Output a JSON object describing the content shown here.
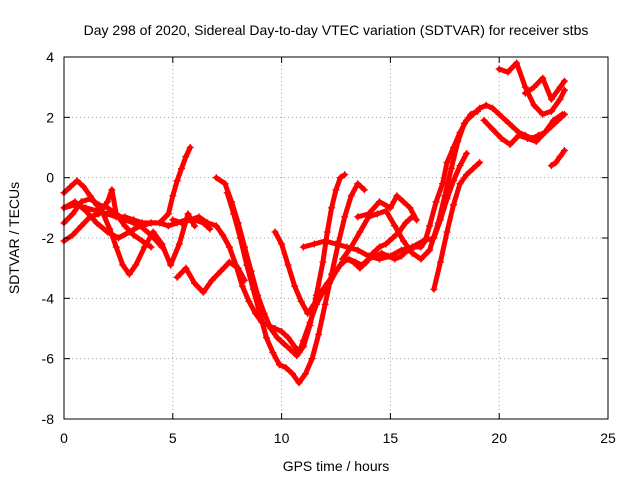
{
  "chart_data": {
    "type": "scatter",
    "title": "Day 298 of 2020, Sidereal Day-to-day VTEC variation (SDTVAR) for receiver stbs",
    "xlabel": "GPS time / hours",
    "ylabel": "SDTVAR / TECUs",
    "xlim": [
      0,
      25
    ],
    "ylim": [
      -8,
      4
    ],
    "xticks": [
      0,
      5,
      10,
      15,
      20,
      25
    ],
    "yticks": [
      -8,
      -6,
      -4,
      -2,
      0,
      2,
      4
    ],
    "xtick_labels": [
      "0",
      "5",
      "10",
      "15",
      "20",
      "25"
    ],
    "ytick_labels": [
      "-8",
      "-6",
      "-4",
      "-2",
      "0",
      "2",
      "4"
    ],
    "grid": true,
    "legend": "none",
    "marker": "+",
    "color": "#ff0000",
    "series": [
      {
        "x": [
          0.0,
          0.3,
          0.6,
          0.9,
          1.2,
          1.5,
          1.8,
          2.1,
          2.4,
          2.7,
          3.0,
          3.3,
          3.7,
          4.1,
          4.5,
          4.9,
          5.3,
          5.7,
          6.0
        ],
        "y": [
          -0.5,
          -0.3,
          -0.1,
          -0.3,
          -0.6,
          -0.9,
          -1.2,
          -1.7,
          -2.3,
          -2.9,
          -3.2,
          -2.9,
          -2.3,
          -1.8,
          -2.2,
          -2.9,
          -2.2,
          -1.2,
          -1.6
        ]
      },
      {
        "x": [
          0.0,
          0.4,
          0.8,
          1.2,
          1.6,
          2.0,
          2.4,
          2.8,
          3.2,
          3.6,
          4.0,
          4.4,
          4.8,
          5.0,
          5.2,
          5.4,
          5.6,
          5.8
        ],
        "y": [
          -1.5,
          -1.2,
          -0.8,
          -0.7,
          -0.9,
          -1.0,
          -1.2,
          -1.4,
          -1.5,
          -1.6,
          -1.5,
          -1.5,
          -1.2,
          -0.6,
          -0.1,
          0.3,
          0.7,
          1.0
        ]
      },
      {
        "x": [
          0.0,
          0.5,
          1.0,
          1.5,
          2.0,
          2.4,
          2.8,
          3.2,
          3.6,
          4.0,
          4.4,
          4.8,
          5.2,
          5.6,
          6.0,
          6.4,
          6.7
        ],
        "y": [
          -1.0,
          -0.9,
          -1.0,
          -1.1,
          -1.2,
          -1.3,
          -1.3,
          -1.4,
          -1.5,
          -1.5,
          -1.5,
          -1.6,
          -1.5,
          -1.4,
          -1.4,
          -1.5,
          -1.7
        ]
      },
      {
        "x": [
          0.0,
          0.4,
          0.8,
          1.2,
          1.6,
          2.0,
          2.2,
          2.4,
          2.8,
          3.2,
          3.6,
          4.0
        ],
        "y": [
          -2.1,
          -1.9,
          -1.6,
          -1.3,
          -1.2,
          -0.8,
          -0.4,
          -1.2,
          -1.6,
          -1.9,
          -2.1,
          -2.3
        ]
      },
      {
        "x": [
          0.0,
          0.5,
          1.0,
          1.5,
          2.0,
          2.5,
          3.0,
          3.5,
          4.0,
          4.5
        ],
        "y": [
          -1.0,
          -0.8,
          -1.1,
          -1.5,
          -1.8,
          -2.0,
          -1.8,
          -1.6,
          -1.9,
          -2.3
        ]
      },
      {
        "x": [
          5.0,
          5.4,
          5.8,
          6.2,
          6.6,
          7.0,
          7.3,
          7.6,
          7.9,
          8.2,
          8.5,
          8.8,
          9.1,
          9.4,
          9.7,
          10.0,
          10.3,
          10.6,
          10.8,
          11.0,
          11.3,
          11.6,
          11.9,
          12.2,
          12.5,
          12.8,
          13.1,
          13.4,
          13.7,
          14.0,
          14.3,
          14.6,
          14.9,
          15.2,
          15.5,
          15.8,
          16.1,
          16.4,
          16.6,
          16.8,
          17.1,
          17.4,
          17.6,
          17.9,
          18.2,
          18.5,
          18.8,
          19.1,
          19.4,
          19.7,
          20.0,
          20.3,
          20.6,
          20.9,
          21.2,
          21.5,
          21.8,
          22.1,
          22.4,
          22.7,
          23.0
        ],
        "y": [
          -1.4,
          -1.5,
          -1.4,
          -1.3,
          -1.5,
          -1.6,
          -1.9,
          -2.3,
          -2.9,
          -3.6,
          -4.1,
          -4.5,
          -4.8,
          -4.9,
          -5.0,
          -5.1,
          -5.3,
          -5.6,
          -5.8,
          -5.4,
          -4.8,
          -4.2,
          -3.8,
          -3.5,
          -3.1,
          -2.8,
          -2.7,
          -2.8,
          -2.9,
          -2.7,
          -2.6,
          -2.5,
          -2.6,
          -2.7,
          -2.6,
          -2.4,
          -2.3,
          -2.3,
          -2.1,
          -1.6,
          -0.8,
          -0.2,
          0.5,
          1.0,
          1.5,
          1.9,
          2.1,
          2.3,
          2.4,
          2.3,
          2.1,
          1.9,
          1.7,
          1.5,
          1.4,
          1.3,
          1.4,
          1.5,
          1.7,
          1.9,
          2.1
        ]
      },
      {
        "x": [
          5.2,
          5.6,
          6.0,
          6.4,
          6.8,
          7.2,
          7.6,
          8.0,
          8.3
        ],
        "y": [
          -3.3,
          -3.0,
          -3.5,
          -3.8,
          -3.4,
          -3.1,
          -2.8,
          -3.0,
          -3.4
        ]
      },
      {
        "x": [
          7.0,
          7.4,
          7.7,
          8.0,
          8.3,
          8.6,
          8.9,
          9.2,
          9.5,
          9.8,
          10.1,
          10.4,
          10.7,
          11.0,
          11.3,
          11.6,
          11.9,
          12.1,
          12.3,
          12.5,
          12.7,
          12.9
        ],
        "y": [
          0.0,
          -0.2,
          -0.8,
          -1.5,
          -2.3,
          -3.1,
          -3.9,
          -4.5,
          -5.0,
          -5.3,
          -5.5,
          -5.7,
          -5.9,
          -5.6,
          -4.9,
          -3.9,
          -2.8,
          -1.8,
          -1.0,
          -0.4,
          0.0,
          0.1
        ]
      },
      {
        "x": [
          7.5,
          7.8,
          8.1,
          8.4,
          8.7,
          9.0,
          9.3,
          9.6,
          9.9,
          10.2,
          10.5,
          10.8,
          11.1,
          11.4,
          11.7,
          12.0,
          12.3,
          12.6,
          12.9,
          13.2,
          13.5,
          13.8
        ],
        "y": [
          -0.5,
          -1.2,
          -2.0,
          -2.9,
          -3.7,
          -4.5,
          -5.3,
          -5.8,
          -6.2,
          -6.3,
          -6.5,
          -6.8,
          -6.5,
          -6.0,
          -5.2,
          -4.2,
          -3.2,
          -2.2,
          -1.3,
          -0.6,
          -0.2,
          -0.4
        ]
      },
      {
        "x": [
          9.7,
          10.0,
          10.3,
          10.6,
          10.9,
          11.2,
          11.5,
          11.8,
          12.1,
          12.4,
          12.7,
          13.0,
          13.3,
          13.6,
          13.9,
          14.2,
          14.5,
          14.8,
          15.1,
          15.4,
          15.7,
          16.0
        ],
        "y": [
          -1.8,
          -2.2,
          -2.9,
          -3.6,
          -4.1,
          -4.5,
          -4.2,
          -3.8,
          -3.5,
          -3.2,
          -2.9,
          -2.7,
          -2.8,
          -3.0,
          -2.8,
          -2.5,
          -2.3,
          -2.2,
          -2.0,
          -1.8,
          -1.5,
          -1.3
        ]
      },
      {
        "x": [
          11.0,
          11.5,
          12.0,
          12.5,
          13.0,
          13.5,
          14.0,
          14.5,
          15.0,
          15.5,
          16.0,
          16.5,
          17.0,
          17.3,
          17.6,
          17.9,
          18.2,
          18.5
        ],
        "y": [
          -2.3,
          -2.2,
          -2.1,
          -2.2,
          -2.3,
          -2.4,
          -2.6,
          -2.7,
          -2.6,
          -2.4,
          -2.3,
          -2.1,
          -2.0,
          -1.4,
          -0.7,
          -0.1,
          0.4,
          0.8
        ]
      },
      {
        "x": [
          12.8,
          13.2,
          13.6,
          14.0,
          14.4,
          14.8,
          15.2,
          15.6,
          16.0,
          16.4,
          16.8,
          17.2,
          17.5,
          17.8,
          18.1,
          18.4,
          18.7,
          19.0
        ],
        "y": [
          -2.7,
          -2.3,
          -1.8,
          -1.3,
          -1.2,
          -1.1,
          -1.6,
          -2.1,
          -2.5,
          -2.7,
          -2.4,
          -1.5,
          -0.6,
          0.3,
          1.2,
          1.8,
          2.1,
          2.2
        ]
      },
      {
        "x": [
          13.5,
          14.0,
          14.5,
          15.0,
          15.3,
          15.6,
          15.9,
          16.2
        ],
        "y": [
          -1.3,
          -1.2,
          -0.8,
          -1.0,
          -0.6,
          -0.8,
          -1.0,
          -1.4
        ]
      },
      {
        "x": [
          17.0,
          17.3,
          17.6,
          17.9,
          18.2,
          18.5,
          18.8,
          19.1
        ],
        "y": [
          -3.7,
          -2.8,
          -1.8,
          -0.9,
          -0.2,
          0.1,
          0.3,
          0.5
        ]
      },
      {
        "x": [
          19.3,
          19.7,
          20.1,
          20.5,
          20.9,
          21.3,
          21.7,
          22.1,
          22.5,
          22.9
        ],
        "y": [
          1.9,
          1.6,
          1.3,
          1.1,
          1.4,
          1.3,
          1.2,
          1.5,
          1.9,
          2.1
        ]
      },
      {
        "x": [
          20.0,
          20.4,
          20.8,
          21.2,
          21.6,
          22.0,
          22.4,
          22.8,
          23.0
        ],
        "y": [
          3.6,
          3.5,
          3.8,
          3.0,
          2.4,
          2.1,
          2.2,
          2.6,
          2.9
        ]
      },
      {
        "x": [
          21.2,
          21.6,
          22.0,
          22.4,
          22.8,
          23.0
        ],
        "y": [
          2.8,
          3.0,
          3.3,
          2.6,
          3.0,
          3.2
        ]
      },
      {
        "x": [
          22.4,
          22.6,
          22.8,
          23.0
        ],
        "y": [
          0.4,
          0.5,
          0.7,
          0.9
        ]
      }
    ]
  }
}
